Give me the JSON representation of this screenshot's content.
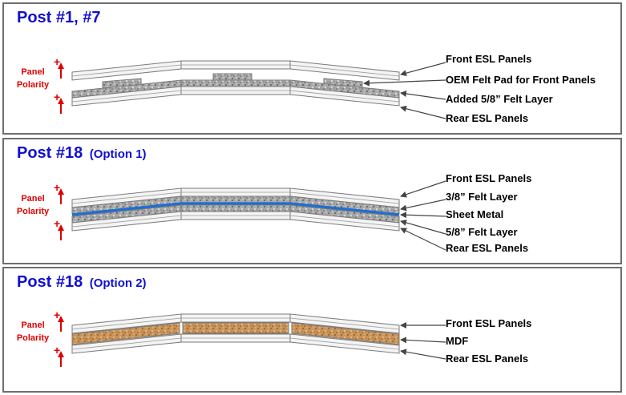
{
  "polarity_label": [
    "Panel",
    "Polarity"
  ],
  "plus_sign": "+",
  "posts": [
    {
      "title": "Post #1, #7",
      "option": "",
      "labels": [
        "Front ESL Panels",
        "OEM Felt Pad for Front Panels",
        "Added 5/8” Felt Layer",
        "Rear ESL Panels"
      ]
    },
    {
      "title": "Post #18",
      "option": "(Option 1)",
      "labels": [
        "Front ESL Panels",
        "3/8” Felt Layer",
        "Sheet Metal",
        "5/8” Felt Layer",
        "Rear ESL Panels"
      ]
    },
    {
      "title": "Post #18",
      "option": "(Option 2)",
      "labels": [
        "Front ESL Panels",
        "MDF",
        "Rear ESL Panels"
      ]
    }
  ],
  "colors": {
    "title": "#1010d0",
    "polarity": "#e00000",
    "border": "#6e6e6e",
    "panel_fill": "#f4f4f4",
    "felt": "#a9a9a9",
    "sheet_metal": "#1e6fd0",
    "mdf": "#c8945a"
  }
}
